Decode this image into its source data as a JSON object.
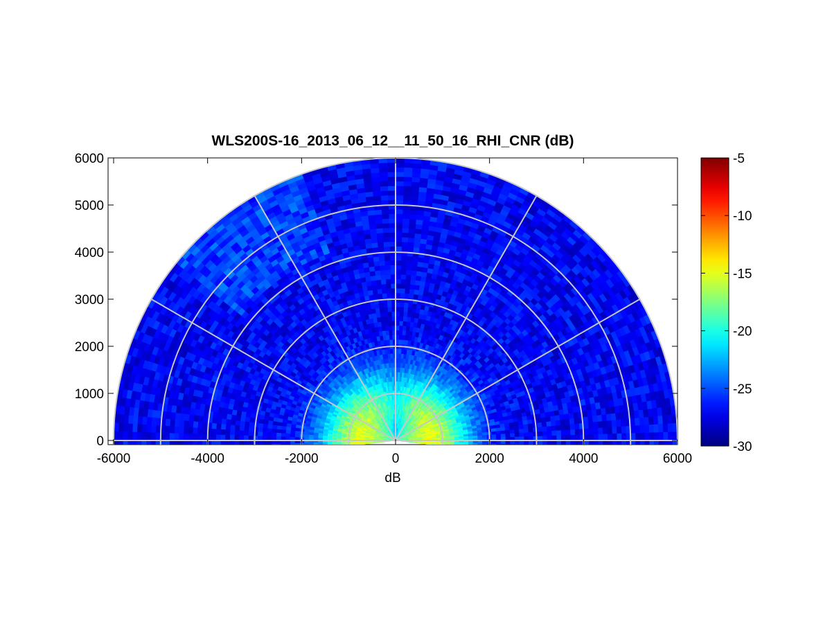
{
  "chart_data": {
    "type": "heatmap",
    "subtype": "polar-rhi-scan",
    "title": "WLS200S-16_2013_06_12__11_50_16_RHI_CNR (dB)",
    "xlabel": "dB",
    "ylabel": "",
    "xlim": [
      -6000,
      6000
    ],
    "ylim": [
      -100,
      6000
    ],
    "xticks": [
      "-6000",
      "-4000",
      "-2000",
      "0",
      "2000",
      "4000",
      "6000"
    ],
    "yticks": [
      "0",
      "1000",
      "2000",
      "3000",
      "4000",
      "5000",
      "6000"
    ],
    "max_range": 6000,
    "range_rings": [
      1000,
      2000,
      3000,
      4000,
      5000,
      6000
    ],
    "radial_spokes_deg": [
      0,
      30,
      60,
      90,
      120,
      150,
      180
    ],
    "scan_elevation_deg": [
      -7,
      187
    ],
    "colorbar": {
      "colormap": "jet",
      "min": -30,
      "max": -5,
      "ticks": [
        "-5",
        "-10",
        "-15",
        "-20",
        "-25",
        "-30"
      ]
    },
    "field": {
      "description_values": "CNR in dB vs range",
      "near_range_peak_db": -15,
      "near_range_peak_radius": 700,
      "background_db": -27
    },
    "grid": true
  }
}
